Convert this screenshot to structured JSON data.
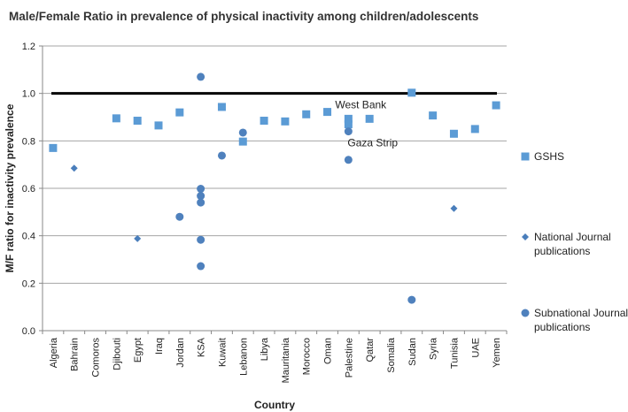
{
  "chart_data": {
    "type": "scatter",
    "title": "Male/Female Ratio in prevalence of physical inactivity among children/adolescents",
    "xlabel": "Country",
    "ylabel": "M/F ratio for inactivity prevalence",
    "ylim": [
      0,
      1.2
    ],
    "yticks": [
      "0.0",
      "0.2",
      "0.4",
      "0.6",
      "0.8",
      "1.0",
      "1.2"
    ],
    "grid": true,
    "legend_position": "right",
    "reference_line": 1.0,
    "categories": [
      "Algeria",
      "Bahrain",
      "Comoros",
      "Djibouti",
      "Egypt",
      "Iraq",
      "Jordan",
      "KSA",
      "Kuwait",
      "Lebanon",
      "Libya",
      "Mauritania",
      "Morocco",
      "Oman",
      "Palestine",
      "Qatar",
      "Somalia",
      "Sudan",
      "Syria",
      "Tunisia",
      "UAE",
      "Yemen"
    ],
    "series": [
      {
        "name": "GSHS",
        "marker": "square",
        "color": "#5b9bd5",
        "points": [
          [
            "Algeria",
            0.77
          ],
          [
            "Djibouti",
            0.895
          ],
          [
            "Egypt",
            0.885
          ],
          [
            "Iraq",
            0.865
          ],
          [
            "Jordan",
            0.92
          ],
          [
            "Kuwait",
            0.943
          ],
          [
            "Lebanon",
            0.797
          ],
          [
            "Libya",
            0.885
          ],
          [
            "Mauritania",
            0.882
          ],
          [
            "Morocco",
            0.912
          ],
          [
            "Oman",
            0.922
          ],
          [
            "Palestine",
            0.893
          ],
          [
            "Palestine",
            0.87
          ],
          [
            "Qatar",
            0.893
          ],
          [
            "Sudan",
            1.003
          ],
          [
            "Syria",
            0.907
          ],
          [
            "Tunisia",
            0.83
          ],
          [
            "UAE",
            0.85
          ],
          [
            "Yemen",
            0.95
          ]
        ]
      },
      {
        "name": "National Journal publications",
        "name_lines": [
          "National Journal",
          "publications"
        ],
        "marker": "diamond",
        "color": "#4a7ebb",
        "points": [
          [
            "Bahrain",
            0.685
          ],
          [
            "Egypt",
            0.388
          ],
          [
            "Tunisia",
            0.515
          ]
        ]
      },
      {
        "name": "Subnational Journal publications",
        "name_lines": [
          "Subnational Journal",
          "publications"
        ],
        "marker": "circle",
        "color": "#4f81bd",
        "points": [
          [
            "Jordan",
            0.48
          ],
          [
            "KSA",
            1.07
          ],
          [
            "KSA",
            0.598
          ],
          [
            "KSA",
            0.568
          ],
          [
            "KSA",
            0.54
          ],
          [
            "KSA",
            0.383
          ],
          [
            "KSA",
            0.272
          ],
          [
            "Kuwait",
            0.738
          ],
          [
            "Lebanon",
            0.835
          ],
          [
            "Palestine",
            0.84
          ],
          [
            "Palestine",
            0.72
          ],
          [
            "Sudan",
            0.13
          ]
        ]
      }
    ],
    "annotations": [
      {
        "text": "West Bank",
        "category": "Palestine",
        "y": 0.893
      },
      {
        "text": "Gaza Strip",
        "category": "Palestine",
        "y": 0.84
      }
    ]
  }
}
